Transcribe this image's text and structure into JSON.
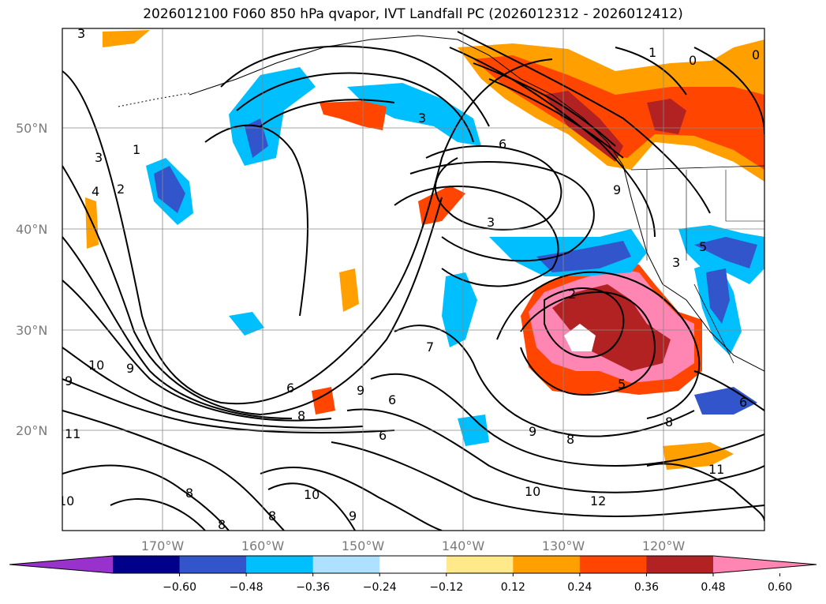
{
  "title": "2026012100 F060 850 hPa qvapor, IVT Landfall PC (2026012312 - 2026012412)",
  "lat_labels": [
    "50°N",
    "40°N",
    "30°N",
    "20°N"
  ],
  "lon_labels": [
    "170°W",
    "160°W",
    "150°W",
    "140°W",
    "130°W",
    "120°W"
  ],
  "colorbar": {
    "ticks": [
      "−0.60",
      "−0.48",
      "−0.36",
      "−0.24",
      "−0.12",
      "0.12",
      "0.24",
      "0.36",
      "0.48",
      "0.60"
    ],
    "colors": [
      "#9932cc",
      "#00008b",
      "#3355cc",
      "#00bfff",
      "#aee0ff",
      "#ffffff",
      "#ffe98a",
      "#ff9f00",
      "#ff4500",
      "#b22222",
      "#ff85b3"
    ]
  },
  "contour_labels": [
    "3",
    "1",
    "3",
    "2",
    "4",
    "3",
    "6",
    "3",
    "1",
    "0",
    "0",
    "9",
    "2",
    "3",
    "5",
    "7",
    "9",
    "10",
    "9",
    "6",
    "8",
    "9",
    "6",
    "6",
    "9",
    "8",
    "6",
    "8",
    "11",
    "10",
    "8",
    "10",
    "8",
    "9",
    "8",
    "10",
    "12",
    "11",
    "5"
  ],
  "map": {
    "lon_range": [
      -178,
      -108
    ],
    "lat_range": [
      10,
      60
    ],
    "contour_field": "IVT",
    "shaded_field": "850 hPa qvapor PC"
  }
}
